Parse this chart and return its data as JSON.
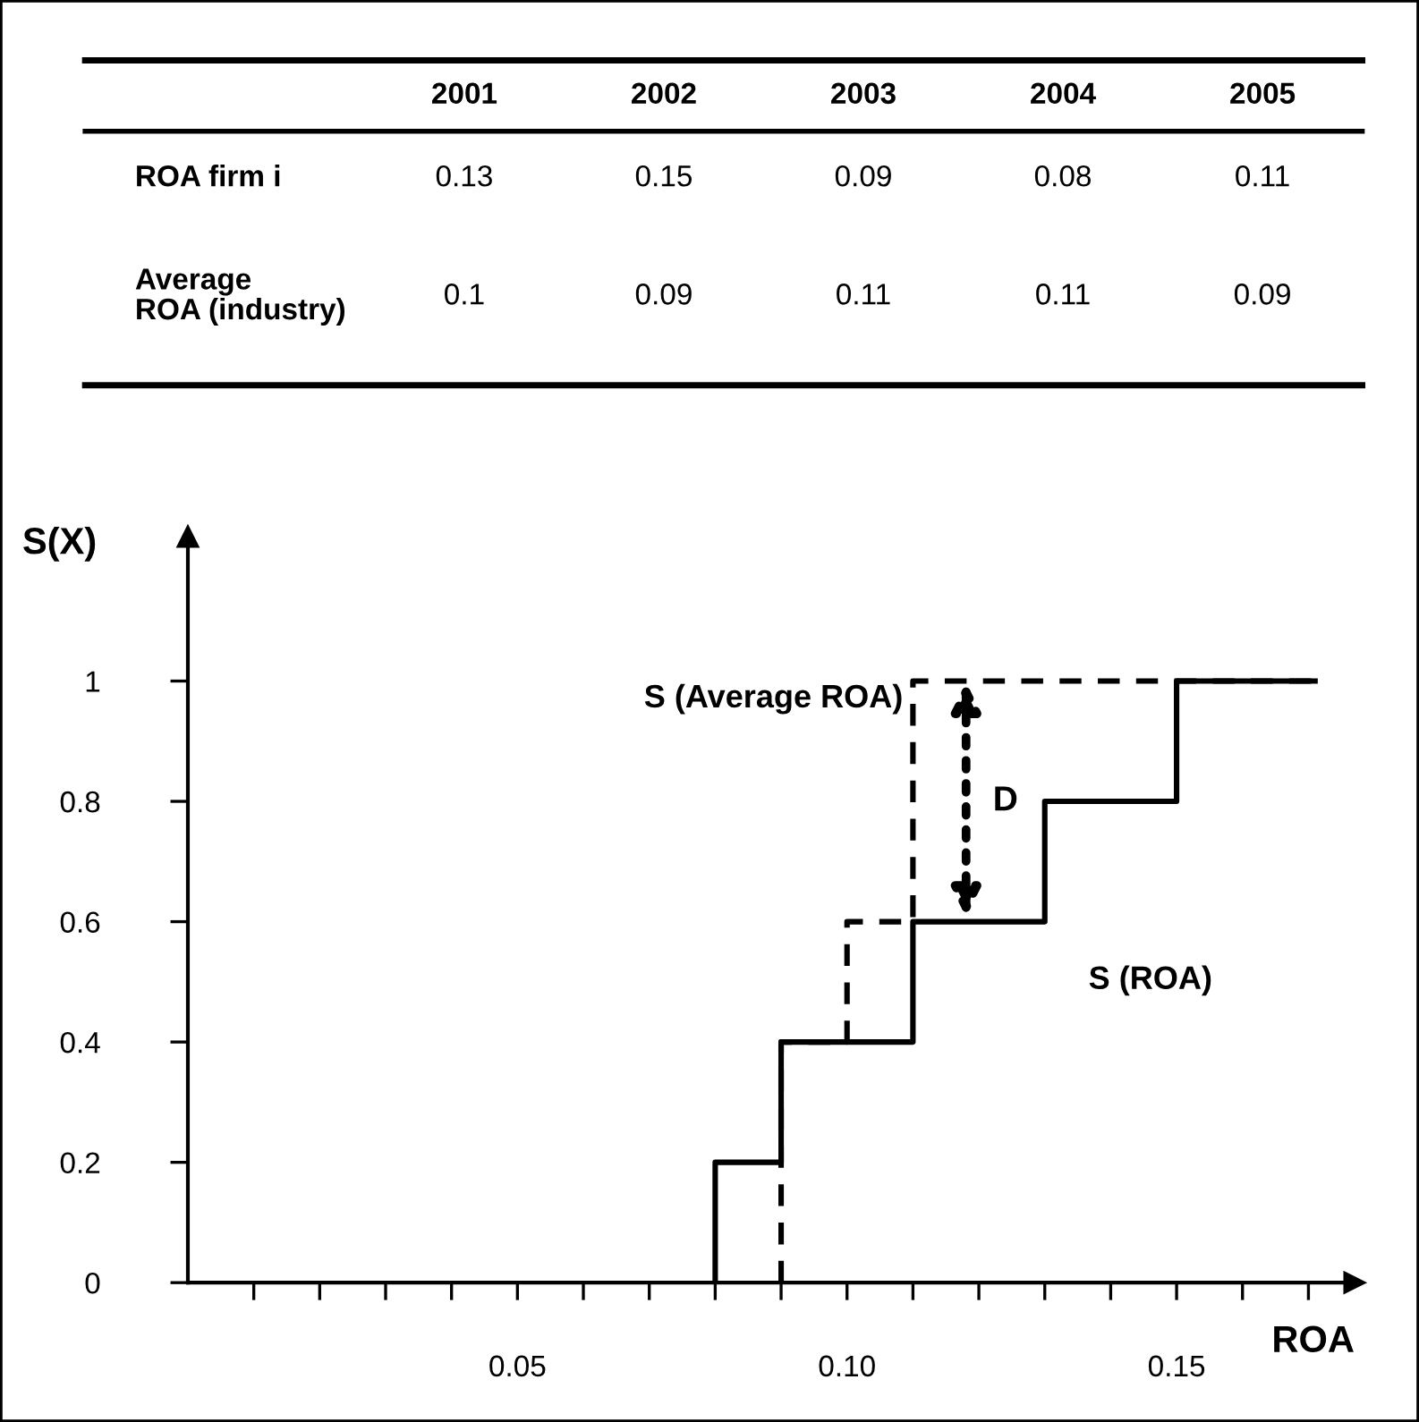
{
  "chart_data": [
    {
      "type": "heatmap",
      "categories": [
        "2001",
        "2002",
        "2003",
        "2004",
        "2005"
      ],
      "y_categories": [
        "ROA firm i",
        "Average\nROA (industry)"
      ],
      "cells": [
        [
          0.13,
          0.15,
          0.09,
          0.08,
          0.11
        ],
        [
          0.1,
          0.09,
          0.11,
          0.11,
          0.09
        ]
      ],
      "data_labels": true
    },
    {
      "type": "step",
      "series": [
        {
          "name": "S (ROA)",
          "color": "#000000",
          "line_style": "solid",
          "x": [
            0.08,
            0.09,
            0.11,
            0.13,
            0.15,
            0.171
          ],
          "values": [
            0,
            0.2,
            0.4,
            0.6,
            0.8,
            1
          ]
        },
        {
          "name": "S (Average ROA)",
          "color": "#000000",
          "line_style": "dashed",
          "x": [
            0.09,
            0.1,
            0.11,
            0.171
          ],
          "values": [
            0,
            0.4,
            0.6,
            1
          ]
        }
      ],
      "xlim": [
        0,
        0.177
      ],
      "ylim": [
        0,
        1.24
      ],
      "xticks": [
        {
          "value": 0.01,
          "label": null
        },
        {
          "value": 0.02,
          "label": null
        },
        {
          "value": 0.03,
          "label": null
        },
        {
          "value": 0.04,
          "label": null
        },
        {
          "value": 0.05,
          "label": "0.05"
        },
        {
          "value": 0.06,
          "label": null
        },
        {
          "value": 0.07,
          "label": null
        },
        {
          "value": 0.08,
          "label": null
        },
        {
          "value": 0.09,
          "label": null
        },
        {
          "value": 0.1,
          "label": "0.10"
        },
        {
          "value": 0.11,
          "label": null
        },
        {
          "value": 0.12,
          "label": null
        },
        {
          "value": 0.13,
          "label": null
        },
        {
          "value": 0.14,
          "label": null
        },
        {
          "value": 0.15,
          "label": "0.15"
        },
        {
          "value": 0.16,
          "label": null
        },
        {
          "value": 0.17,
          "label": null
        }
      ],
      "yticks": [
        0,
        0.2,
        0.4,
        0.6,
        0.8,
        1
      ],
      "xlabel": "ROA",
      "ylabel": "S(X)",
      "annotations": [
        "D"
      ]
    }
  ]
}
